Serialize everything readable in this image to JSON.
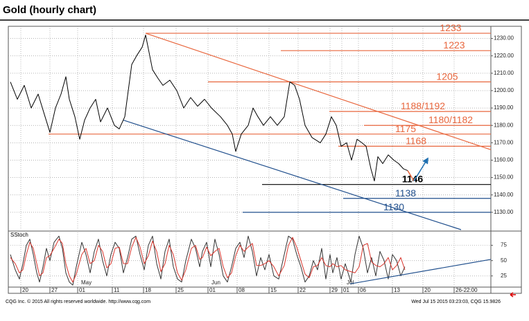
{
  "chart_data": [
    {
      "type": "line",
      "title": "Gold (hourly chart)",
      "color": "#000000",
      "grid": true,
      "xlim": [
        0,
        696
      ],
      "ylim": [
        1120,
        1237
      ],
      "yticks": [
        {
          "value": 1130,
          "label": "1130.00"
        },
        {
          "value": 1140,
          "label": "1140.00"
        },
        {
          "value": 1150,
          "label": "1150.00"
        },
        {
          "value": 1160,
          "label": "1160.00"
        },
        {
          "value": 1170,
          "label": "1170.00"
        },
        {
          "value": 1180,
          "label": "1180.00"
        },
        {
          "value": 1190,
          "label": "1190.00"
        },
        {
          "value": 1200,
          "label": "1200.00"
        },
        {
          "value": 1210,
          "label": "1210.00"
        },
        {
          "value": 1220,
          "label": "1220.00"
        },
        {
          "value": 1230,
          "label": "1230.00"
        }
      ],
      "xticks": [
        {
          "value": 18,
          "label": "20"
        },
        {
          "value": 60,
          "label": "27"
        },
        {
          "value": 100,
          "label": "01"
        },
        {
          "value": 150,
          "label": "11"
        },
        {
          "value": 195,
          "label": "18"
        },
        {
          "value": 242,
          "label": "25"
        },
        {
          "value": 288,
          "label": "01"
        },
        {
          "value": 330,
          "label": "08"
        },
        {
          "value": 376,
          "label": "15"
        },
        {
          "value": 418,
          "label": "22"
        },
        {
          "value": 464,
          "label": "29"
        },
        {
          "value": 481,
          "label": "01"
        },
        {
          "value": 505,
          "label": "06"
        },
        {
          "value": 554,
          "label": "13"
        },
        {
          "value": 598,
          "label": "20"
        },
        {
          "value": 643,
          "label": "26-22:00"
        }
      ],
      "x": [
        3,
        13,
        23,
        33,
        43,
        53,
        60,
        68,
        76,
        83,
        88,
        96,
        103,
        110,
        118,
        126,
        133,
        143,
        153,
        160,
        168,
        173,
        178,
        185,
        193,
        198,
        203,
        208,
        216,
        223,
        233,
        243,
        253,
        263,
        273,
        283,
        293,
        306,
        316,
        323,
        328,
        336,
        346,
        353,
        360,
        368,
        378,
        388,
        398,
        406,
        413,
        420,
        428,
        438,
        450,
        458,
        466,
        473,
        480,
        488,
        495,
        503,
        510,
        516,
        523,
        528,
        533,
        540,
        548,
        556,
        563,
        570,
        576
      ],
      "values": [
        1205,
        1195,
        1203,
        1190,
        1198,
        1185,
        1176,
        1190,
        1198,
        1208,
        1195,
        1185,
        1172,
        1183,
        1190,
        1195,
        1182,
        1190,
        1180,
        1178,
        1185,
        1200,
        1215,
        1220,
        1225,
        1232,
        1222,
        1212,
        1207,
        1203,
        1206,
        1200,
        1190,
        1196,
        1191,
        1195,
        1190,
        1185,
        1180,
        1175,
        1165,
        1175,
        1180,
        1190,
        1185,
        1180,
        1185,
        1180,
        1185,
        1205,
        1203,
        1195,
        1180,
        1173,
        1170,
        1175,
        1185,
        1180,
        1168,
        1170,
        1160,
        1172,
        1170,
        1168,
        1155,
        1148,
        1162,
        1158,
        1163,
        1160,
        1158,
        1155,
        1154
      ],
      "levels": [
        {
          "value": 1233,
          "label": "1233",
          "start": 198,
          "color": "#e8663d"
        },
        {
          "value": 1223,
          "label": "1223",
          "start": 393,
          "color": "#e8663d"
        },
        {
          "value": 1205,
          "label": "1205",
          "start": 288,
          "color": "#e8663d"
        },
        {
          "value": 1188,
          "label": "1188/1192",
          "start": 463,
          "color": "#e8663d"
        },
        {
          "value": 1180,
          "label": "1180/1182",
          "start": 513,
          "color": "#e8663d"
        },
        {
          "value": 1175,
          "label": "1175",
          "start": 58,
          "color": "#e8663d"
        },
        {
          "value": 1168,
          "label": "1168",
          "start": 476,
          "color": "#e8663d"
        },
        {
          "value": 1146,
          "label": "1146",
          "start": 366,
          "color": "#000000"
        },
        {
          "value": 1138,
          "label": "1138",
          "start": 483,
          "color": "#1f4e8c"
        },
        {
          "value": 1130,
          "label": "1130",
          "start": 338,
          "color": "#1f4e8c"
        }
      ],
      "trendlines": [
        {
          "x": [
            198,
            696
          ],
          "y": [
            1233,
            1166
          ],
          "color": "#e8663d"
        },
        {
          "x": [
            166,
            653
          ],
          "y": [
            1183,
            1120
          ],
          "color": "#1f4e8c"
        }
      ],
      "projection": [
        {
          "x": [
            576,
            585
          ],
          "y": [
            1154,
            1148
          ],
          "color": "#e8663d"
        },
        {
          "x": [
            585,
            605
          ],
          "y": [
            1148,
            1161
          ],
          "color": "#1f6fb0"
        }
      ]
    },
    {
      "type": "line",
      "name": "SStoch",
      "grid": true,
      "xlim": [
        0,
        696
      ],
      "ylim": [
        9,
        96
      ],
      "yticks": [
        25,
        50,
        75
      ],
      "month_labels": [
        {
          "value": 105,
          "label": "May"
        },
        {
          "value": 293,
          "label": "Jun"
        },
        {
          "value": 488,
          "label": "Jul"
        }
      ],
      "x": [
        3,
        10,
        16,
        21,
        26,
        31,
        36,
        41,
        45,
        50,
        55,
        60,
        66,
        73,
        78,
        83,
        88,
        93,
        98,
        106,
        112,
        118,
        124,
        130,
        136,
        142,
        148,
        154,
        160,
        166,
        172,
        178,
        184,
        190,
        196,
        202,
        208,
        214,
        220,
        226,
        232,
        238,
        244,
        250,
        256,
        264,
        270,
        276,
        280,
        286,
        292,
        298,
        304,
        310,
        316,
        322,
        328,
        334,
        340,
        346,
        352,
        358,
        364,
        370,
        376,
        383,
        390,
        398,
        404,
        410,
        416,
        422,
        428,
        434,
        440,
        446,
        452,
        458,
        464,
        468,
        474,
        480,
        486,
        494,
        500,
        506,
        512,
        518,
        524,
        530,
        536,
        542,
        548,
        554,
        560,
        566,
        572
      ],
      "series": [
        {
          "color": "#333333",
          "values": [
            60,
            35,
            20,
            45,
            75,
            85,
            60,
            30,
            15,
            40,
            70,
            50,
            80,
            90,
            70,
            30,
            15,
            10,
            40,
            80,
            60,
            30,
            65,
            85,
            50,
            25,
            60,
            80,
            70,
            30,
            55,
            85,
            90,
            60,
            35,
            75,
            90,
            45,
            20,
            65,
            85,
            40,
            20,
            15,
            50,
            85,
            70,
            40,
            65,
            80,
            40,
            85,
            60,
            25,
            15,
            40,
            70,
            80,
            55,
            90,
            65,
            25,
            55,
            35,
            60,
            25,
            20,
            60,
            90,
            85,
            60,
            40,
            15,
            25,
            50,
            35,
            70,
            20,
            60,
            30,
            55,
            20,
            45,
            15,
            60,
            90,
            70,
            30,
            55,
            25,
            65,
            50,
            20,
            60,
            50,
            25,
            40
          ]
        },
        {
          "color": "#d9342b",
          "values": [
            55,
            45,
            30,
            35,
            60,
            80,
            70,
            45,
            25,
            30,
            55,
            58,
            70,
            85,
            78,
            45,
            25,
            15,
            28,
            60,
            70,
            45,
            50,
            75,
            65,
            38,
            45,
            70,
            72,
            45,
            45,
            72,
            88,
            72,
            45,
            58,
            82,
            65,
            32,
            45,
            75,
            60,
            30,
            18,
            35,
            70,
            75,
            52,
            55,
            72,
            58,
            65,
            70,
            40,
            22,
            30,
            58,
            75,
            65,
            72,
            78,
            42,
            42,
            45,
            50,
            40,
            25,
            42,
            75,
            88,
            72,
            50,
            28,
            22,
            40,
            42,
            55,
            42,
            40,
            45,
            40,
            42,
            35,
            32,
            30,
            40,
            75,
            78,
            48,
            42,
            40,
            45,
            55,
            35,
            42,
            55,
            35
          ]
        }
      ],
      "trendline": {
        "x": [
          493,
          696
        ],
        "y": [
          12,
          52
        ],
        "color": "#1f4e8c"
      }
    }
  ],
  "footer": {
    "left": "CQG Inc. © 2015 All rights reserved worldwide. http://www.cqg.com",
    "right": "Wed Jul 15 2015 03:23:03, CQG 15.9826"
  }
}
